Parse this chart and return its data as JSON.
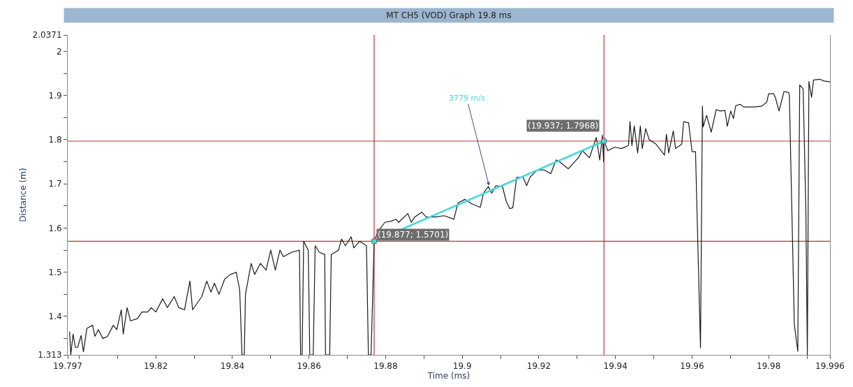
{
  "chart_data": {
    "type": "line",
    "title": "MT CH5 (VOD) Graph 19.8 ms",
    "xlabel": "Time (ms)",
    "ylabel": "Distance (m)",
    "xlim": [
      19.797,
      19.996
    ],
    "ylim": [
      1.313,
      2.0371
    ],
    "xticks": [
      19.797,
      {
        "value": 19.8,
        "label": null
      },
      {
        "value": 19.81,
        "label": null
      },
      19.82,
      {
        "value": 19.83,
        "label": null
      },
      19.84,
      {
        "value": 19.85,
        "label": null
      },
      19.86,
      {
        "value": 19.87,
        "label": null
      },
      19.88,
      {
        "value": 19.89,
        "label": null
      },
      19.9,
      {
        "value": 19.91,
        "label": null
      },
      19.92,
      {
        "value": 19.93,
        "label": null
      },
      19.94,
      {
        "value": 19.95,
        "label": null
      },
      19.96,
      {
        "value": 19.97,
        "label": null
      },
      19.98,
      {
        "value": 19.99,
        "label": null
      },
      19.996
    ],
    "yticks": [
      1.313,
      {
        "value": 1.35,
        "label": null
      },
      1.4,
      {
        "value": 1.45,
        "label": null
      },
      1.5,
      {
        "value": 1.55,
        "label": null
      },
      1.6,
      {
        "value": 1.65,
        "label": null
      },
      1.7,
      {
        "value": 1.75,
        "label": null
      },
      1.8,
      {
        "value": 1.85,
        "label": null
      },
      1.9,
      {
        "value": 1.95,
        "label": null
      },
      2,
      2.0371
    ],
    "grid": false,
    "line_style": "solid",
    "series": [
      {
        "color": "#1a1a1a",
        "marker": "none",
        "x": [
          19.7975,
          19.7978,
          19.7984,
          19.799,
          19.7996,
          19.8005,
          19.8011,
          19.802,
          19.8035,
          19.8041,
          19.805,
          19.8062,
          19.8074,
          19.8089,
          19.8098,
          19.811,
          19.8115,
          19.8125,
          19.8134,
          19.8152,
          19.8164,
          19.8179,
          19.8188,
          19.82,
          19.8218,
          19.823,
          19.8248,
          19.826,
          19.8275,
          19.8289,
          19.8296,
          19.832,
          19.8333,
          19.8344,
          19.8353,
          19.8365,
          19.838,
          19.8395,
          19.841,
          19.8419,
          19.8425,
          19.8431,
          19.8434,
          19.8449,
          19.8458,
          19.8473,
          19.8488,
          19.85,
          19.8512,
          19.8524,
          19.8533,
          19.8554,
          19.8575,
          19.8578,
          19.8582,
          19.8586,
          19.8598,
          19.8602,
          19.8611,
          19.8616,
          19.8627,
          19.8641,
          19.8643,
          19.8654,
          19.8658,
          19.8677,
          19.8685,
          19.8695,
          19.871,
          19.8717,
          19.8732,
          19.8741,
          19.875,
          19.8755,
          19.8762,
          19.877,
          19.878,
          19.8798,
          19.8816,
          19.8827,
          19.8834,
          19.8858,
          19.8867,
          19.8876,
          19.8894,
          19.8906,
          19.893,
          19.8953,
          19.8978,
          19.8989,
          19.9007,
          19.9025,
          19.9047,
          19.9056,
          19.9068,
          19.9077,
          19.9088,
          19.9105,
          19.9115,
          19.9124,
          19.9132,
          19.9142,
          19.9159,
          19.9168,
          19.9177,
          19.9195,
          19.9213,
          19.9231,
          19.9245,
          19.9254,
          19.9277,
          19.9303,
          19.9314,
          19.9332,
          19.935,
          19.9359,
          19.9366,
          19.9369,
          19.937,
          19.938,
          19.9398,
          19.9416,
          19.9434,
          19.9438,
          19.9443,
          19.9449,
          19.9458,
          19.9465,
          19.947,
          19.9479,
          19.9488,
          19.9506,
          19.9528,
          19.9533,
          19.9539,
          19.9551,
          19.9557,
          19.9573,
          19.9578,
          19.9591,
          19.96,
          19.9609,
          19.9614,
          19.9622,
          19.9627,
          19.9629,
          19.9638,
          19.965,
          19.9663,
          19.9674,
          19.9686,
          19.9692,
          19.9701,
          19.9708,
          19.9714,
          19.9726,
          19.9735,
          19.9764,
          19.9782,
          19.9795,
          19.98,
          19.9813,
          19.9818,
          19.9827,
          19.984,
          19.9852,
          19.9854,
          19.9867,
          19.9876,
          19.9881,
          19.989,
          19.9897,
          19.9901,
          19.9905,
          19.9912,
          19.9917,
          19.9933,
          19.9944,
          19.996
        ],
        "values": [
          1.365,
          1.313,
          1.36,
          1.33,
          1.33,
          1.357,
          1.32,
          1.373,
          1.38,
          1.355,
          1.37,
          1.35,
          1.355,
          1.38,
          1.37,
          1.415,
          1.36,
          1.42,
          1.39,
          1.395,
          1.41,
          1.41,
          1.42,
          1.41,
          1.44,
          1.42,
          1.445,
          1.42,
          1.415,
          1.48,
          1.415,
          1.445,
          1.48,
          1.455,
          1.475,
          1.45,
          1.485,
          1.495,
          1.5,
          1.46,
          1.313,
          1.313,
          1.45,
          1.52,
          1.495,
          1.52,
          1.505,
          1.55,
          1.505,
          1.55,
          1.535,
          1.545,
          1.55,
          1.313,
          1.313,
          1.57,
          1.55,
          1.313,
          1.313,
          1.56,
          1.545,
          1.54,
          1.313,
          1.313,
          1.54,
          1.55,
          1.575,
          1.56,
          1.58,
          1.555,
          1.57,
          1.565,
          1.56,
          1.313,
          1.313,
          1.5701,
          1.592,
          1.613,
          1.616,
          1.62,
          1.613,
          1.633,
          1.613,
          1.625,
          1.636,
          1.625,
          1.625,
          1.628,
          1.62,
          1.657,
          1.665,
          1.655,
          1.647,
          1.68,
          1.694,
          1.679,
          1.696,
          1.694,
          1.66,
          1.644,
          1.646,
          1.715,
          1.715,
          1.696,
          1.715,
          1.731,
          1.732,
          1.723,
          1.754,
          1.75,
          1.734,
          1.759,
          1.775,
          1.759,
          1.805,
          1.754,
          1.81,
          1.75,
          1.7968,
          1.775,
          1.783,
          1.78,
          1.787,
          1.841,
          1.787,
          1.831,
          1.77,
          1.831,
          1.78,
          1.825,
          1.8,
          1.79,
          1.765,
          1.812,
          1.77,
          1.82,
          1.78,
          1.79,
          1.841,
          1.838,
          1.773,
          1.773,
          1.6,
          1.329,
          1.876,
          1.829,
          1.855,
          1.817,
          1.868,
          1.865,
          1.866,
          1.83,
          1.865,
          1.848,
          1.877,
          1.88,
          1.874,
          1.874,
          1.876,
          1.885,
          1.904,
          1.904,
          1.894,
          1.865,
          1.909,
          1.907,
          1.9,
          1.381,
          1.321,
          1.924,
          1.915,
          1.644,
          1.313,
          1.932,
          1.896,
          1.935,
          1.937,
          1.933,
          1.931
        ]
      },
      {
        "color": "#3fd9dc",
        "marker": "circle",
        "x": [
          19.877,
          19.937
        ],
        "values": [
          1.5701,
          1.7968
        ]
      }
    ],
    "ref_lines": [
      {
        "axis": "x",
        "value": 19.877,
        "color": "#b03a3a"
      },
      {
        "axis": "x",
        "value": 19.937,
        "color": "#b03a3a"
      },
      {
        "axis": "y",
        "value": 1.5701,
        "color": "#b03a3a"
      },
      {
        "axis": "y",
        "value": 1.7968,
        "color": "#b03a3a"
      }
    ],
    "annotations": [
      {
        "text": "3779 m/s",
        "x": 19.907,
        "y": 1.696
      },
      {
        "text": "(19.877; 1.5701)",
        "x": 19.877,
        "y": 1.5701
      },
      {
        "text": "(19.937; 1.7968)",
        "x": 19.937,
        "y": 1.7968
      }
    ]
  }
}
